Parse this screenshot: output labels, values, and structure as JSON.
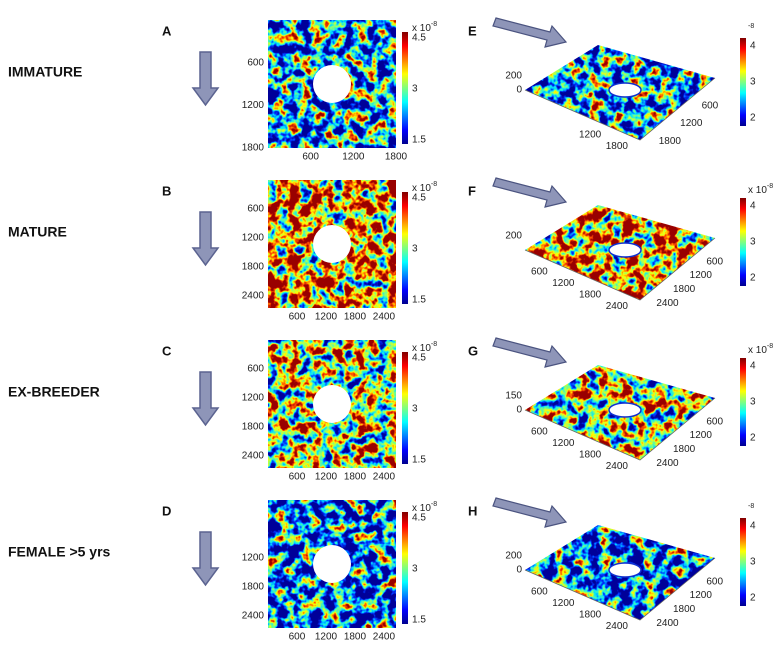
{
  "rows": [
    {
      "label": "IMMATURE",
      "map": {
        "letter": "A",
        "yticks": [
          "600",
          "1200",
          "1800"
        ],
        "xticks": [
          "600",
          "1200",
          "1800"
        ],
        "colorbar": {
          "exponent": "x 10",
          "power": "-8",
          "ticks": [
            "4.5",
            "3",
            "1.5"
          ]
        }
      },
      "surface": {
        "letter": "E",
        "zticks": [
          "200",
          "0"
        ],
        "front_ticks": [
          "1200",
          "1800"
        ],
        "right_ticks": [
          "600",
          "1200",
          "1800"
        ],
        "colorbar": {
          "power": "-8",
          "ticks": [
            "4",
            "3",
            "2"
          ]
        }
      }
    },
    {
      "label": "MATURE",
      "map": {
        "letter": "B",
        "yticks": [
          "600",
          "1200",
          "1800",
          "2400"
        ],
        "xticks": [
          "600",
          "1200",
          "1800",
          "2400"
        ],
        "colorbar": {
          "exponent": "x 10",
          "power": "-8",
          "ticks": [
            "4.5",
            "3",
            "1.5"
          ]
        }
      },
      "surface": {
        "letter": "F",
        "zticks": [
          "200"
        ],
        "front_ticks": [
          "600",
          "1200",
          "1800",
          "2400"
        ],
        "right_ticks": [
          "600",
          "1200",
          "1800",
          "2400"
        ],
        "colorbar": {
          "exponent": "x 10",
          "power": "-8",
          "ticks": [
            "4",
            "3",
            "2"
          ]
        }
      }
    },
    {
      "label": "EX-BREEDER",
      "map": {
        "letter": "C",
        "yticks": [
          "600",
          "1200",
          "1800",
          "2400"
        ],
        "xticks": [
          "600",
          "1200",
          "1800",
          "2400"
        ],
        "colorbar": {
          "exponent": "x 10",
          "power": "-8",
          "ticks": [
            "4.5",
            "3",
            "1.5"
          ]
        }
      },
      "surface": {
        "letter": "G",
        "zticks": [
          "150",
          "0"
        ],
        "front_ticks": [
          "600",
          "1200",
          "1800",
          "2400"
        ],
        "right_ticks": [
          "600",
          "1200",
          "1800",
          "2400"
        ],
        "colorbar": {
          "exponent": "x 10",
          "power": "-8",
          "ticks": [
            "4",
            "3",
            "2"
          ]
        }
      }
    },
    {
      "label": "FEMALE >5 yrs",
      "map": {
        "letter": "D",
        "yticks": [
          "1200",
          "1800",
          "2400"
        ],
        "xticks": [
          "600",
          "1200",
          "1800",
          "2400"
        ],
        "colorbar": {
          "exponent": "x 10",
          "power": "-8",
          "ticks": [
            "4.5",
            "3",
            "1.5"
          ]
        }
      },
      "surface": {
        "letter": "H",
        "zticks": [
          "200",
          "0"
        ],
        "front_ticks": [
          "600",
          "1200",
          "1800",
          "2400"
        ],
        "right_ticks": [
          "600",
          "1200",
          "1800",
          "2400"
        ],
        "colorbar": {
          "power": "-8",
          "ticks": [
            "4",
            "3",
            "2"
          ]
        }
      }
    }
  ]
}
